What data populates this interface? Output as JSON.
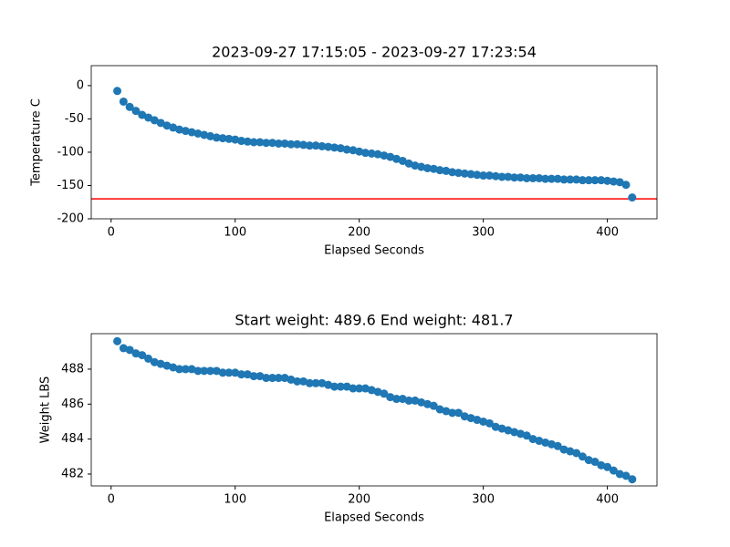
{
  "chart_data": [
    {
      "type": "scatter",
      "title": "2023-09-27 17:15:05 - 2023-09-27 17:23:54",
      "x_label": "Elapsed Seconds",
      "y_label": "Temperature C",
      "x": [
        5,
        10,
        15,
        20,
        25,
        30,
        35,
        40,
        45,
        50,
        55,
        60,
        65,
        70,
        75,
        80,
        85,
        90,
        95,
        100,
        105,
        110,
        115,
        120,
        125,
        130,
        135,
        140,
        145,
        150,
        155,
        160,
        165,
        170,
        175,
        180,
        185,
        190,
        195,
        200,
        205,
        210,
        215,
        220,
        225,
        230,
        235,
        240,
        245,
        250,
        255,
        260,
        265,
        270,
        275,
        280,
        285,
        290,
        295,
        300,
        305,
        310,
        315,
        320,
        325,
        330,
        335,
        340,
        345,
        350,
        355,
        360,
        365,
        370,
        375,
        380,
        385,
        390,
        395,
        400,
        405,
        410,
        415,
        420
      ],
      "values": [
        -8,
        -24,
        -32,
        -38,
        -44,
        -48,
        -52,
        -56,
        -60,
        -63,
        -66,
        -68,
        -70,
        -72,
        -74,
        -76,
        -78,
        -79,
        -80,
        -81,
        -83,
        -84,
        -85,
        -85,
        -86,
        -86,
        -87,
        -87,
        -88,
        -88,
        -89,
        -90,
        -90,
        -91,
        -92,
        -93,
        -94,
        -96,
        -97,
        -99,
        -101,
        -102,
        -103,
        -105,
        -107,
        -110,
        -113,
        -117,
        -120,
        -122,
        -124,
        -125,
        -127,
        -128,
        -130,
        -131,
        -132,
        -133,
        -134,
        -135,
        -135,
        -136,
        -137,
        -137,
        -138,
        -138,
        -139,
        -139,
        -139,
        -140,
        -140,
        -140,
        -141,
        -141,
        -141,
        -142,
        -142,
        -142,
        -142,
        -143,
        -144,
        -145,
        -149,
        -168
      ],
      "color": "#1f77b4",
      "hline": {
        "value": -170,
        "color": "#ff0000"
      },
      "xlim": [
        -16,
        440
      ],
      "xticks": [
        0,
        100,
        200,
        300,
        400
      ],
      "ylim": [
        -200,
        30
      ],
      "yticks": [
        -200,
        -150,
        -100,
        -50,
        0
      ]
    },
    {
      "type": "scatter",
      "title": "Start weight: 489.6 End weight: 481.7",
      "x_label": "Elapsed Seconds",
      "y_label": "Weight LBS",
      "x": [
        5,
        10,
        15,
        20,
        25,
        30,
        35,
        40,
        45,
        50,
        55,
        60,
        65,
        70,
        75,
        80,
        85,
        90,
        95,
        100,
        105,
        110,
        115,
        120,
        125,
        130,
        135,
        140,
        145,
        150,
        155,
        160,
        165,
        170,
        175,
        180,
        185,
        190,
        195,
        200,
        205,
        210,
        215,
        220,
        225,
        230,
        235,
        240,
        245,
        250,
        255,
        260,
        265,
        270,
        275,
        280,
        285,
        290,
        295,
        300,
        305,
        310,
        315,
        320,
        325,
        330,
        335,
        340,
        345,
        350,
        355,
        360,
        365,
        370,
        375,
        380,
        385,
        390,
        395,
        400,
        405,
        410,
        415,
        420
      ],
      "values": [
        489.6,
        489.2,
        489.1,
        488.9,
        488.8,
        488.6,
        488.4,
        488.3,
        488.2,
        488.1,
        488.0,
        488.0,
        488.0,
        487.9,
        487.9,
        487.9,
        487.9,
        487.8,
        487.8,
        487.8,
        487.7,
        487.7,
        487.6,
        487.6,
        487.5,
        487.5,
        487.5,
        487.5,
        487.4,
        487.3,
        487.3,
        487.2,
        487.2,
        487.2,
        487.1,
        487.0,
        487.0,
        487.0,
        486.9,
        486.9,
        486.9,
        486.8,
        486.7,
        486.6,
        486.4,
        486.3,
        486.3,
        486.2,
        486.2,
        486.1,
        486.0,
        485.9,
        485.7,
        485.6,
        485.5,
        485.5,
        485.3,
        485.2,
        485.1,
        485.0,
        484.9,
        484.7,
        484.6,
        484.5,
        484.4,
        484.3,
        484.2,
        484.0,
        483.9,
        483.8,
        483.7,
        483.6,
        483.4,
        483.3,
        483.2,
        483.0,
        482.8,
        482.7,
        482.5,
        482.4,
        482.2,
        482.0,
        481.9,
        481.7
      ],
      "color": "#1f77b4",
      "xlim": [
        -16,
        440
      ],
      "xticks": [
        0,
        100,
        200,
        300,
        400
      ],
      "ylim": [
        481.32,
        490.03
      ],
      "yticks": [
        482,
        484,
        486,
        488
      ]
    }
  ]
}
